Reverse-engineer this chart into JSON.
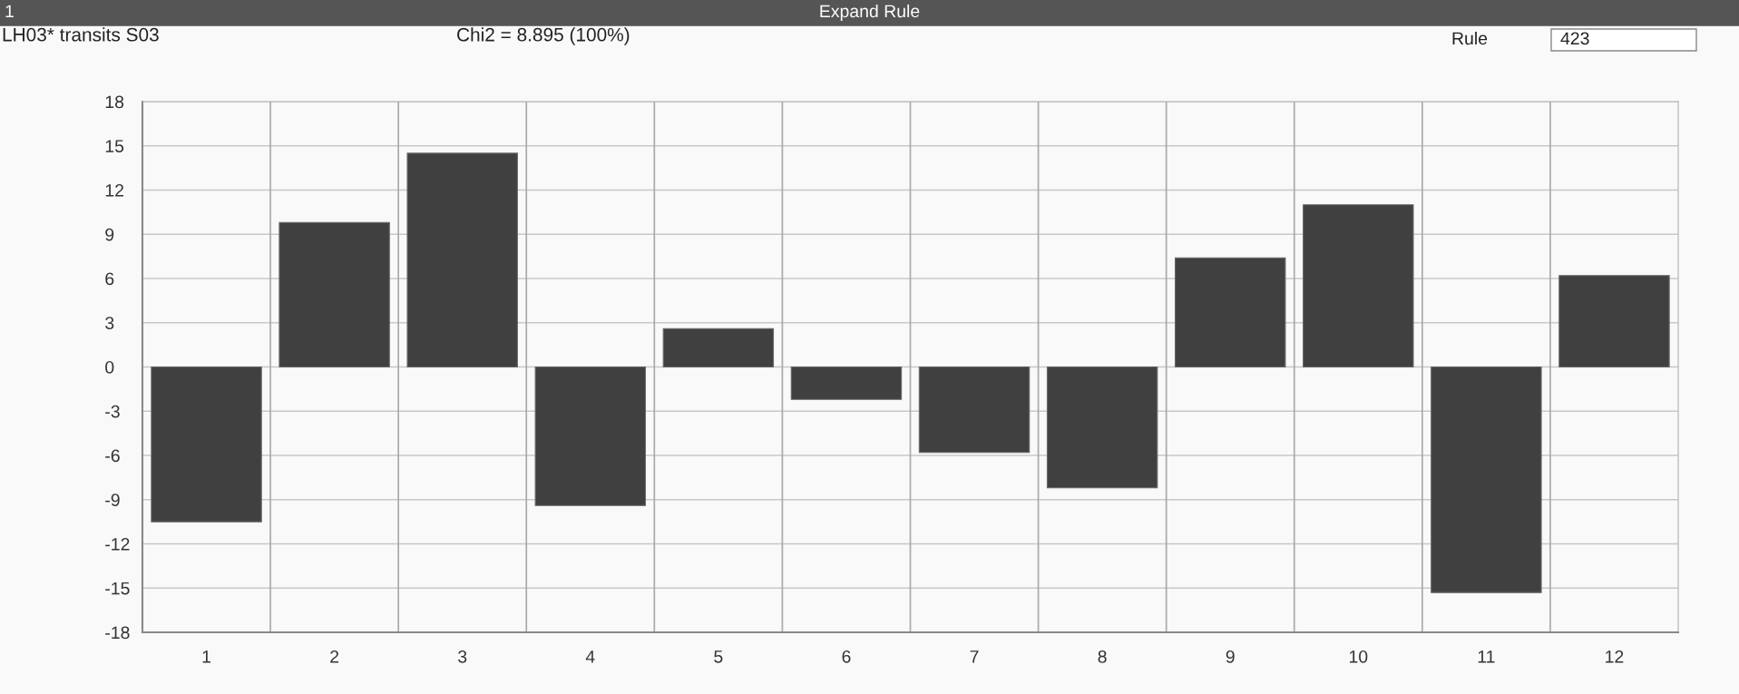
{
  "chart_data": {
    "type": "bar",
    "title": "LH03* transits S03",
    "subtitle": "Chi2 = 8.895 (100%)",
    "annotations": [
      "1",
      "Expand Rule",
      "Rule",
      "423"
    ],
    "categories": [
      "1",
      "2",
      "3",
      "4",
      "5",
      "6",
      "7",
      "8",
      "9",
      "10",
      "11",
      "12"
    ],
    "values": [
      -10.5,
      9.8,
      14.5,
      -9.4,
      2.6,
      -2.2,
      -5.8,
      -8.2,
      7.4,
      11.0,
      -15.3,
      6.2
    ],
    "color": "#404040",
    "ylim": [
      -18,
      18
    ],
    "yticks": [
      -18,
      -15,
      -12,
      -9,
      -6,
      -3,
      0,
      3,
      6,
      9,
      12,
      15,
      18
    ],
    "grid": true,
    "legend": false
  }
}
